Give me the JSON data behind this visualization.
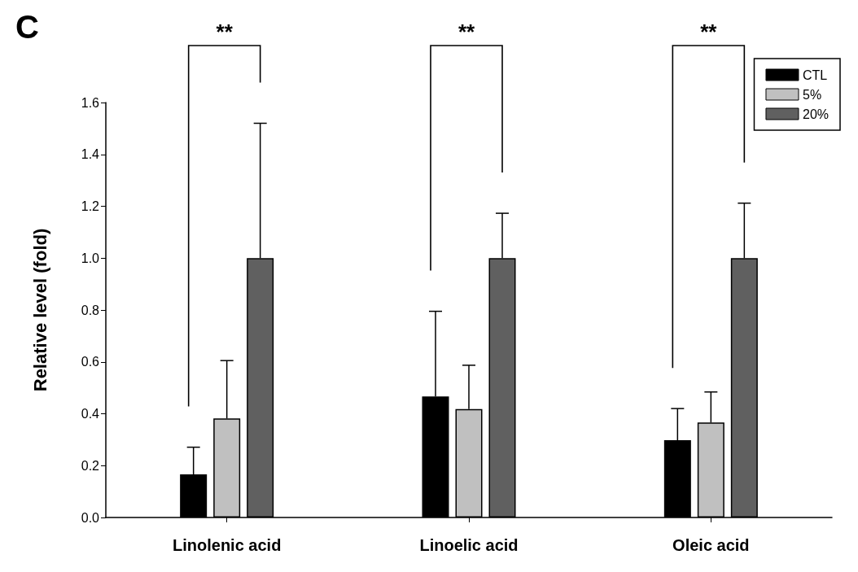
{
  "chart_data": {
    "type": "bar",
    "title": "C",
    "ylabel": "Relative level (fold)",
    "categories": [
      "Linolenic acid",
      "Linoelic acid",
      "Oleic acid"
    ],
    "series": [
      {
        "name": "CTL",
        "color": "#000000",
        "values": [
          0.166,
          0.467,
          0.298
        ],
        "errors": [
          0.105,
          0.328,
          0.122
        ]
      },
      {
        "name": "5%",
        "color": "#c0c0c0",
        "values": [
          0.382,
          0.418,
          0.366
        ],
        "errors": [
          0.223,
          0.169,
          0.118
        ]
      },
      {
        "name": "20%",
        "color": "#606060",
        "values": [
          1.0,
          1.0,
          1.0
        ],
        "errors": [
          0.52,
          0.173,
          0.212
        ]
      }
    ],
    "ylim": [
      0,
      1.6
    ],
    "yticks": [
      {
        "value": 0,
        "label": "0.0"
      },
      0.2,
      0.4,
      0.6,
      0.8,
      {
        "value": 1,
        "label": "1.0"
      },
      1.2,
      1.4,
      1.6
    ],
    "annotations": [
      "**",
      "**",
      "**"
    ],
    "legend": "top right",
    "grid": false
  }
}
